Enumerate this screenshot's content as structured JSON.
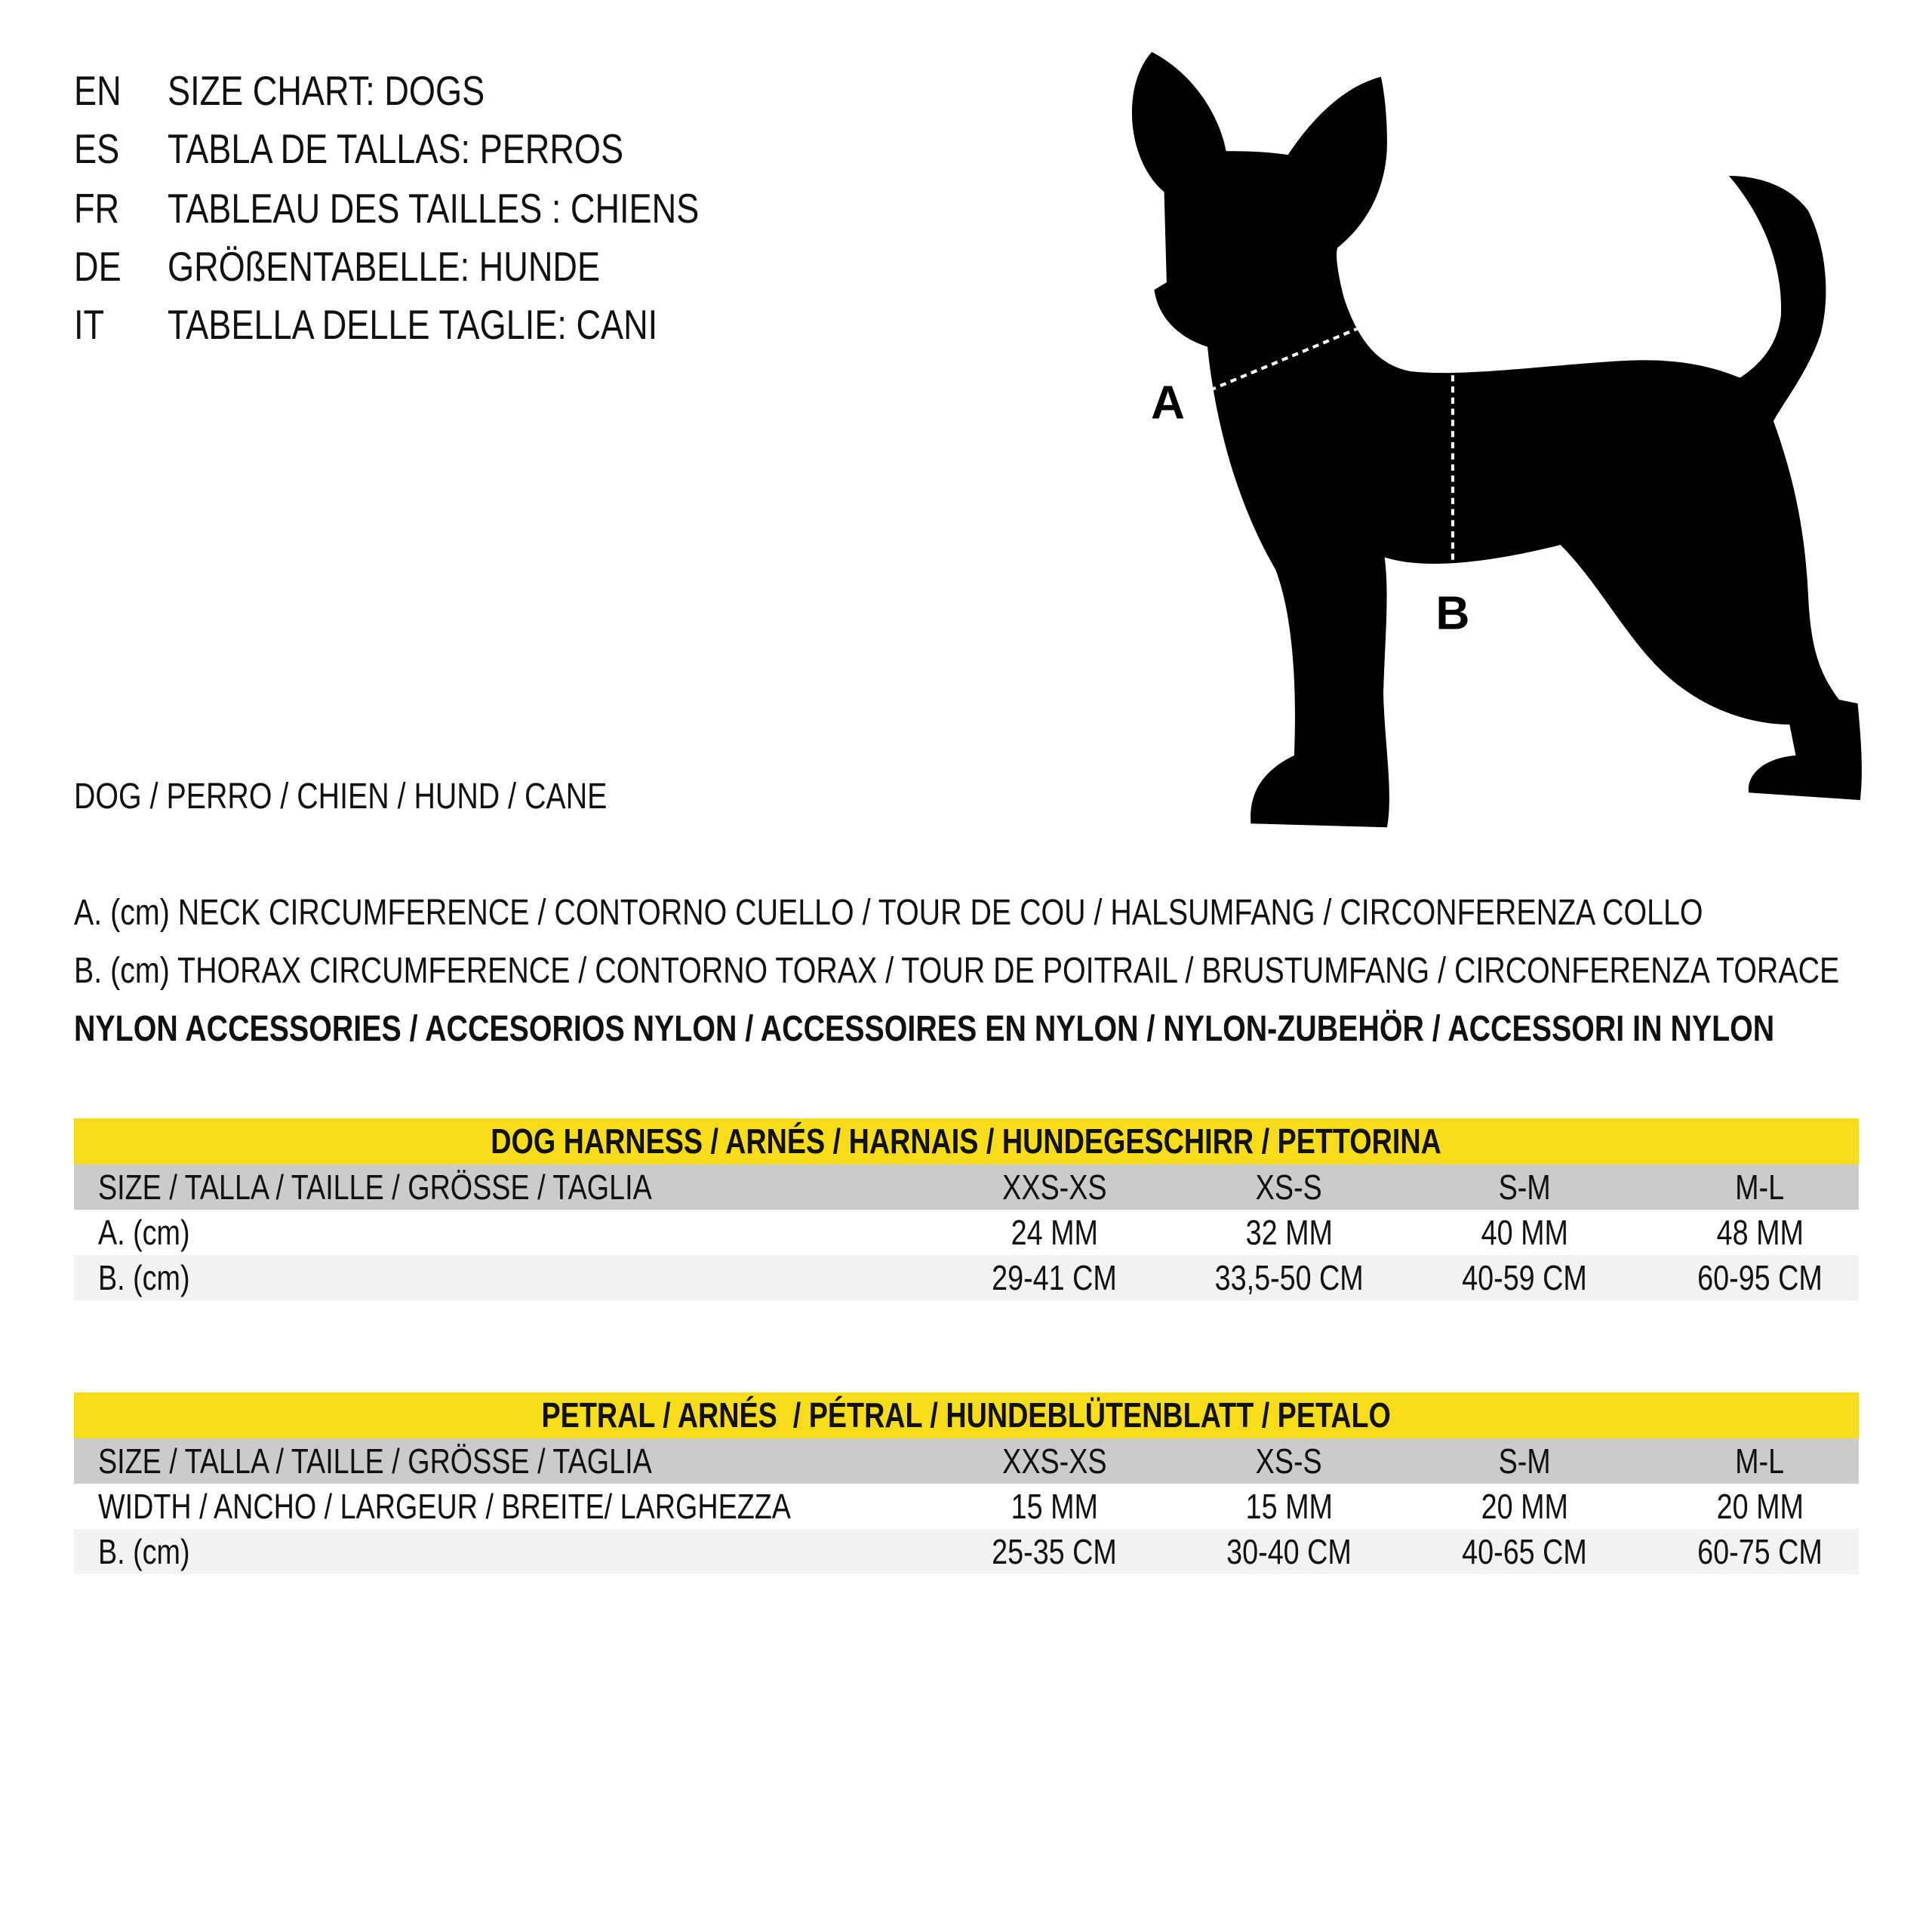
{
  "titles": [
    {
      "code": "EN",
      "text": "SIZE CHART: DOGS"
    },
    {
      "code": "ES",
      "text": "TABLA DE TALLAS: PERROS"
    },
    {
      "code": "FR",
      "text": "TABLEAU DES TAILLES : CHIENS"
    },
    {
      "code": "DE",
      "text": "GRÖßENTABELLE: HUNDE"
    },
    {
      "code": "IT",
      "text": "TABELLA DELLE TAGLIE: CANI"
    }
  ],
  "animal_label": "DOG / PERRO / CHIEN / HUND / CANE",
  "diagram": {
    "label_a": "A",
    "label_b": "B",
    "silhouette_color": "#000000"
  },
  "legend": {
    "a": "A. (cm) NECK CIRCUMFERENCE / CONTORNO CUELLO / TOUR DE COU / HALSUMFANG / CIRCONFERENZA COLLO",
    "b": "B. (cm) THORAX CIRCUMFERENCE / CONTORNO TORAX / TOUR DE POITRAIL / BRUSTUMFANG / CIRCONFERENZA TORACE",
    "nylon": "NYLON ACCESSORIES / ACCESORIOS NYLON / ACCESSOIRES EN NYLON / NYLON-ZUBEHÖR / ACCESSORI IN NYLON"
  },
  "colors": {
    "header_yellow": "#f6dc1a",
    "size_row_gray": "#cbcbcb",
    "alt_row": "#f2f2f2"
  },
  "tables": [
    {
      "title": "DOG HARNESS / ARNÉS / HARNAIS / HUNDEGESCHIRR / PETTORINA",
      "size_label": "SIZE / TALLA / TAILLE / GRÖSSE / TAGLIA",
      "sizes": [
        "XXS-XS",
        "XS-S",
        "S-M",
        "M-L"
      ],
      "rows": [
        {
          "label": "A. (cm)",
          "values": [
            "24 MM",
            "32 MM",
            "40 MM",
            "48 MM"
          ]
        },
        {
          "label": "B. (cm)",
          "values": [
            "29-41 CM",
            "33,5-50 CM",
            "40-59 CM",
            "60-95 CM"
          ]
        }
      ]
    },
    {
      "title": "PETRAL / ARNÉS  / PÉTRAL / HUNDEBLÜTENBLATT / PETALO",
      "size_label": "SIZE / TALLA / TAILLE / GRÖSSE / TAGLIA",
      "sizes": [
        "XXS-XS",
        "XS-S",
        "S-M",
        "M-L"
      ],
      "rows": [
        {
          "label": "WIDTH / ANCHO / LARGEUR / BREITE/ LARGHEZZA",
          "values": [
            "15 MM",
            "15 MM",
            "20 MM",
            "20 MM"
          ]
        },
        {
          "label": "B. (cm)",
          "values": [
            "25-35 CM",
            "30-40 CM",
            "40-65 CM",
            "60-75 CM"
          ]
        }
      ]
    }
  ]
}
